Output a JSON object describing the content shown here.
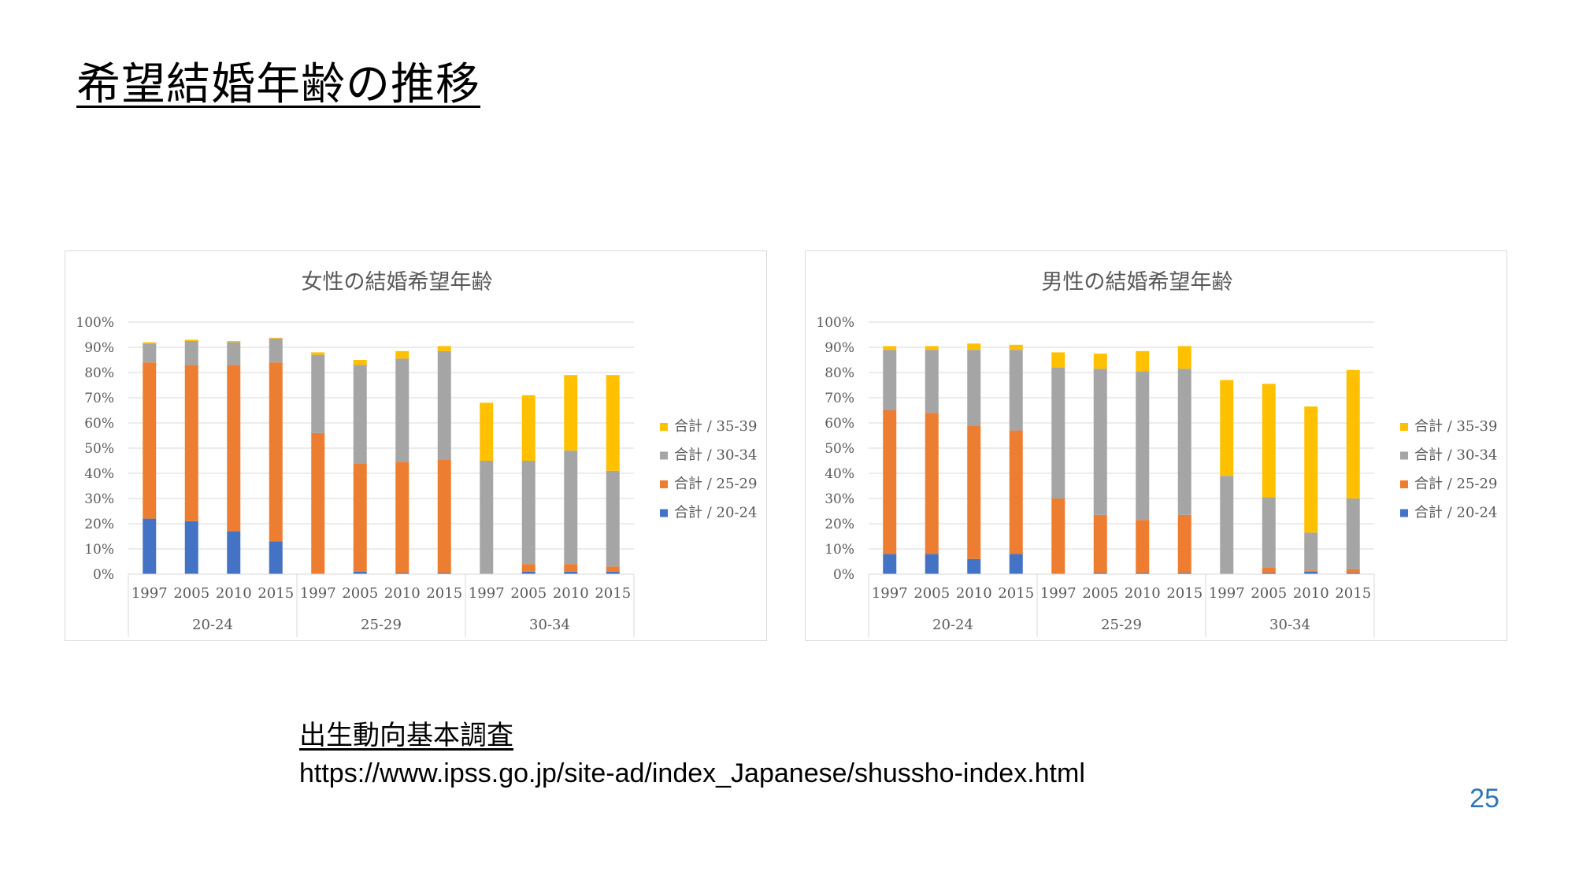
{
  "slide": {
    "title": "希望結婚年齢の推移",
    "source_title": "出生動向基本調査",
    "source_url": "https://www.ipss.go.jp/site-ad/index_Japanese/shussho-index.html",
    "page_number": "25"
  },
  "colors": {
    "20-24": "#4472c4",
    "25-29": "#ed7d31",
    "30-34": "#a5a5a5",
    "35-39": "#ffc000"
  },
  "chart_data": [
    {
      "type": "bar",
      "stacked": true,
      "title": "女性の結婚希望年齢",
      "ylim": [
        0,
        100
      ],
      "yticks": [
        "0%",
        "10%",
        "20%",
        "30%",
        "40%",
        "50%",
        "60%",
        "70%",
        "80%",
        "90%",
        "100%"
      ],
      "grid": true,
      "legend_position": "right",
      "groups": [
        {
          "label": "20-24",
          "years": [
            "1997",
            "2005",
            "2010",
            "2015"
          ]
        },
        {
          "label": "25-29",
          "years": [
            "1997",
            "2005",
            "2010",
            "2015"
          ]
        },
        {
          "label": "30-34",
          "years": [
            "1997",
            "2005",
            "2010",
            "2015"
          ]
        }
      ],
      "series": [
        {
          "name": "合計 / 20-24",
          "key": "20-24",
          "values": [
            22,
            21,
            17,
            13,
            0,
            1,
            0.5,
            0.5,
            0,
            1,
            1,
            1
          ]
        },
        {
          "name": "合計 / 25-29",
          "key": "25-29",
          "values": [
            62,
            62,
            66,
            71,
            56,
            43,
            44,
            45,
            0,
            3,
            3,
            2
          ]
        },
        {
          "name": "合計 / 30-34",
          "key": "30-34",
          "values": [
            7.5,
            9.5,
            9,
            9.5,
            31,
            39,
            41,
            43,
            45,
            41,
            45,
            38
          ]
        },
        {
          "name": "合計 / 35-39",
          "key": "35-39",
          "values": [
            0.5,
            0.5,
            0.5,
            0.3,
            1,
            2,
            3,
            2,
            23,
            26,
            30,
            38
          ]
        }
      ]
    },
    {
      "type": "bar",
      "stacked": true,
      "title": "男性の結婚希望年齢",
      "ylim": [
        0,
        100
      ],
      "yticks": [
        "0%",
        "10%",
        "20%",
        "30%",
        "40%",
        "50%",
        "60%",
        "70%",
        "80%",
        "90%",
        "100%"
      ],
      "grid": true,
      "legend_position": "right",
      "groups": [
        {
          "label": "20-24",
          "years": [
            "1997",
            "2005",
            "2010",
            "2015"
          ]
        },
        {
          "label": "25-29",
          "years": [
            "1997",
            "2005",
            "2010",
            "2015"
          ]
        },
        {
          "label": "30-34",
          "years": [
            "1997",
            "2005",
            "2010",
            "2015"
          ]
        }
      ],
      "series": [
        {
          "name": "合計 / 20-24",
          "key": "20-24",
          "values": [
            8,
            8,
            6,
            8,
            0,
            0.5,
            0.5,
            0.5,
            0,
            0.5,
            1,
            0.5
          ]
        },
        {
          "name": "合計 / 25-29",
          "key": "25-29",
          "values": [
            57,
            56,
            53,
            49,
            30,
            23,
            21,
            23,
            0,
            2,
            0.5,
            1.5
          ]
        },
        {
          "name": "合計 / 30-34",
          "key": "30-34",
          "values": [
            24,
            25,
            30,
            32,
            52,
            58,
            59,
            58,
            39,
            28,
            15,
            28
          ]
        },
        {
          "name": "合計 / 35-39",
          "key": "35-39",
          "values": [
            1.5,
            1.5,
            2.5,
            2,
            6,
            6,
            8,
            9,
            38,
            45,
            50,
            51
          ]
        }
      ]
    }
  ]
}
